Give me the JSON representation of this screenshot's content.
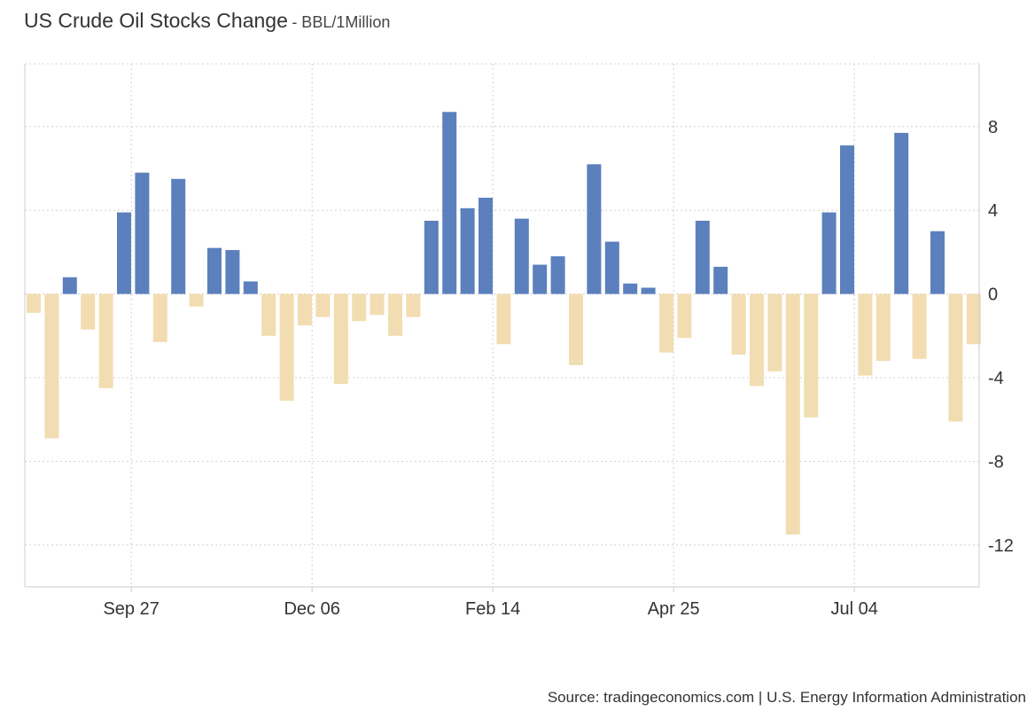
{
  "header": {
    "title": "US Crude Oil Stocks Change",
    "unit": "- BBL/1Million"
  },
  "footer": {
    "source": "Source: tradingeconomics.com | U.S. Energy Information Administration"
  },
  "colors": {
    "positive": "#5b80bd",
    "negative": "#f2ddb2",
    "grid": "#d0d0d0",
    "axis": "#cccccc",
    "text": "#333333"
  },
  "chart_data": {
    "type": "bar",
    "title": "US Crude Oil Stocks Change",
    "ylabel": "BBL/1Million",
    "xlabel": "",
    "ylim": [
      -14,
      11
    ],
    "yticks": [
      -12,
      -8,
      -4,
      0,
      4,
      8
    ],
    "ytick_labels": [
      "-12",
      "-8",
      "-4",
      "0",
      "4",
      "8"
    ],
    "x_tick_labels": [
      "Sep 27",
      "Dec 06",
      "Feb 14",
      "Apr 25",
      "Jul 04"
    ],
    "x_tick_bar_positions": [
      5.4,
      15.4,
      25.4,
      35.4,
      45.4
    ],
    "grid": true,
    "y_axis_side": "right",
    "color_rule": "blue for increases, beige for decreases",
    "values": [
      -0.9,
      -6.9,
      0.8,
      -1.7,
      -4.5,
      3.9,
      5.8,
      -2.3,
      5.5,
      -0.6,
      2.2,
      2.1,
      0.6,
      -2.0,
      -5.1,
      -1.5,
      -1.1,
      -4.3,
      -1.3,
      -1.0,
      -2.0,
      -1.1,
      3.5,
      8.7,
      4.1,
      4.6,
      -2.4,
      3.6,
      1.4,
      1.8,
      -3.4,
      6.2,
      2.5,
      0.5,
      0.3,
      -2.8,
      -2.1,
      3.5,
      1.3,
      -2.9,
      -4.4,
      -3.7,
      -11.5,
      -5.9,
      3.9,
      7.1,
      -3.9,
      -3.2,
      7.7,
      -3.1,
      3.0,
      -6.1,
      -2.4
    ]
  }
}
